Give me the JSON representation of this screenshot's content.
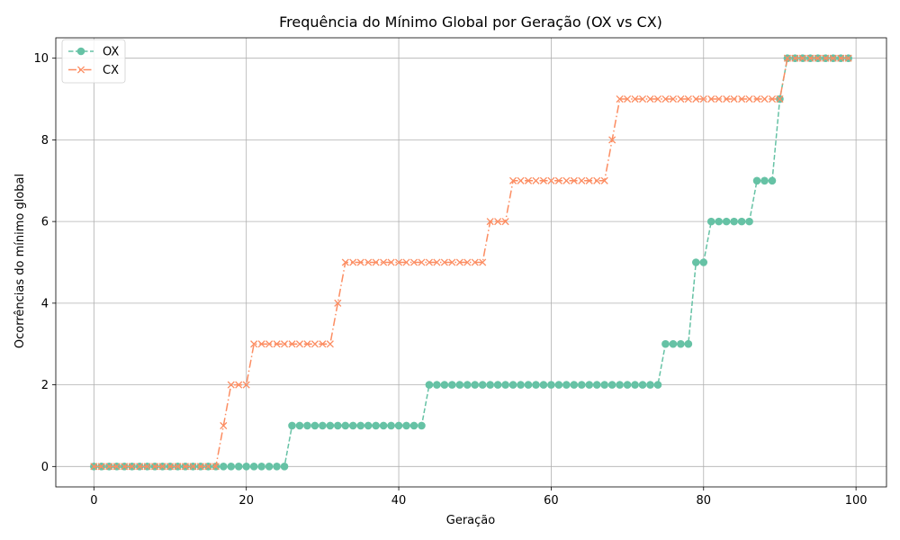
{
  "chart_data": {
    "type": "line",
    "title": "Frequência do Mínimo Global por Geração (OX vs CX)",
    "xlabel": "Geração",
    "ylabel": "Ocorrências do mínimo global",
    "xlim": [
      -5,
      104
    ],
    "ylim": [
      -0.5,
      10.5
    ],
    "xticks": [
      0,
      20,
      40,
      60,
      80,
      100
    ],
    "yticks": [
      0,
      2,
      4,
      6,
      8,
      10
    ],
    "grid": true,
    "legend_position": "top-left",
    "x": [
      0,
      1,
      2,
      3,
      4,
      5,
      6,
      7,
      8,
      9,
      10,
      11,
      12,
      13,
      14,
      15,
      16,
      17,
      18,
      19,
      20,
      21,
      22,
      23,
      24,
      25,
      26,
      27,
      28,
      29,
      30,
      31,
      32,
      33,
      34,
      35,
      36,
      37,
      38,
      39,
      40,
      41,
      42,
      43,
      44,
      45,
      46,
      47,
      48,
      49,
      50,
      51,
      52,
      53,
      54,
      55,
      56,
      57,
      58,
      59,
      60,
      61,
      62,
      63,
      64,
      65,
      66,
      67,
      68,
      69,
      70,
      71,
      72,
      73,
      74,
      75,
      76,
      77,
      78,
      79,
      80,
      81,
      82,
      83,
      84,
      85,
      86,
      87,
      88,
      89,
      90,
      91,
      92,
      93,
      94,
      95,
      96,
      97,
      98,
      99
    ],
    "series": [
      {
        "name": "OX",
        "color": "#66c2a5",
        "linestyle": "dashed",
        "marker": "circle",
        "values": [
          0,
          0,
          0,
          0,
          0,
          0,
          0,
          0,
          0,
          0,
          0,
          0,
          0,
          0,
          0,
          0,
          0,
          0,
          0,
          0,
          0,
          0,
          0,
          0,
          0,
          0,
          1,
          1,
          1,
          1,
          1,
          1,
          1,
          1,
          1,
          1,
          1,
          1,
          1,
          1,
          1,
          1,
          1,
          1,
          2,
          2,
          2,
          2,
          2,
          2,
          2,
          2,
          2,
          2,
          2,
          2,
          2,
          2,
          2,
          2,
          2,
          2,
          2,
          2,
          2,
          2,
          2,
          2,
          2,
          2,
          2,
          2,
          2,
          2,
          2,
          3,
          3,
          3,
          3,
          5,
          5,
          6,
          6,
          6,
          6,
          6,
          6,
          7,
          7,
          7,
          9,
          10,
          10,
          10,
          10,
          10,
          10,
          10,
          10,
          10
        ]
      },
      {
        "name": "CX",
        "color": "#fc8d62",
        "linestyle": "dashdot",
        "marker": "x",
        "values": [
          0,
          0,
          0,
          0,
          0,
          0,
          0,
          0,
          0,
          0,
          0,
          0,
          0,
          0,
          0,
          0,
          0,
          1,
          2,
          2,
          2,
          3,
          3,
          3,
          3,
          3,
          3,
          3,
          3,
          3,
          3,
          3,
          4,
          5,
          5,
          5,
          5,
          5,
          5,
          5,
          5,
          5,
          5,
          5,
          5,
          5,
          5,
          5,
          5,
          5,
          5,
          5,
          6,
          6,
          6,
          7,
          7,
          7,
          7,
          7,
          7,
          7,
          7,
          7,
          7,
          7,
          7,
          7,
          8,
          9,
          9,
          9,
          9,
          9,
          9,
          9,
          9,
          9,
          9,
          9,
          9,
          9,
          9,
          9,
          9,
          9,
          9,
          9,
          9,
          9,
          9,
          10,
          10,
          10,
          10,
          10,
          10,
          10,
          10,
          10
        ]
      }
    ]
  }
}
